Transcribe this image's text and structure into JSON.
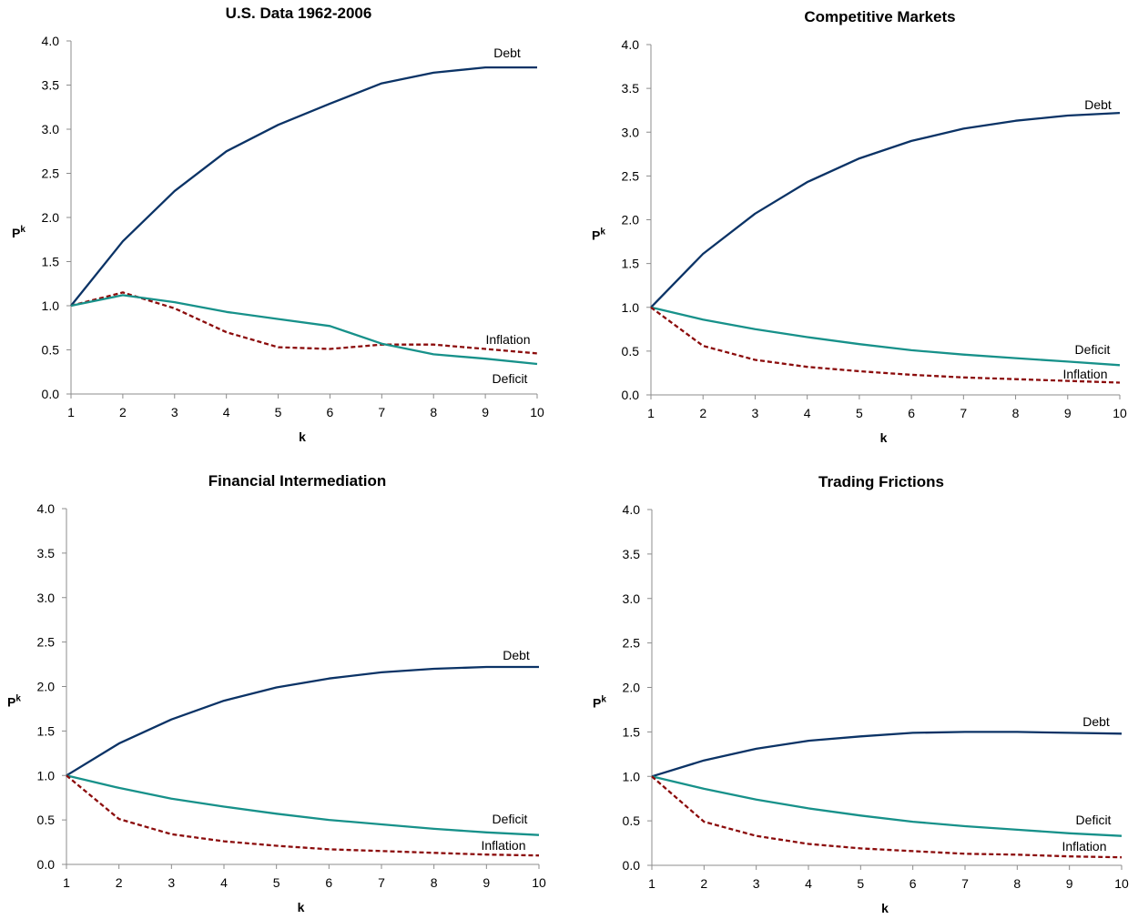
{
  "colors": {
    "debt": "#0b3366",
    "deficit": "#17918a",
    "inflation": "#8b0b0b",
    "axis": "#8c8c8c"
  },
  "chart_data": [
    {
      "type": "line",
      "title": "U.S. Data 1962-2006",
      "xlabel": "k",
      "ylabel": "P",
      "ylabel_sup": "k",
      "x": [
        1,
        2,
        3,
        4,
        5,
        6,
        7,
        8,
        9,
        10
      ],
      "xlim": [
        1,
        10
      ],
      "ylim": [
        0,
        4
      ],
      "yticks": [
        "0.0",
        "0.5",
        "1.0",
        "1.5",
        "2.0",
        "2.5",
        "3.0",
        "3.5",
        "4.0"
      ],
      "grid": false,
      "series": [
        {
          "name": "Debt",
          "key": "debt",
          "style": "solid",
          "values": [
            1.0,
            1.73,
            2.3,
            2.75,
            3.05,
            3.29,
            3.52,
            3.64,
            3.7,
            3.7
          ]
        },
        {
          "name": "Inflation",
          "key": "inflation",
          "style": "dashed",
          "values": [
            1.0,
            1.15,
            0.97,
            0.7,
            0.53,
            0.51,
            0.56,
            0.56,
            0.51,
            0.46
          ]
        },
        {
          "name": "Deficit",
          "key": "deficit",
          "style": "solid",
          "values": [
            1.0,
            1.12,
            1.04,
            0.93,
            0.85,
            0.77,
            0.57,
            0.45,
            0.4,
            0.34
          ]
        }
      ]
    },
    {
      "type": "line",
      "title": "Competitive Markets",
      "xlabel": "k",
      "ylabel": "P",
      "ylabel_sup": "k",
      "x": [
        1,
        2,
        3,
        4,
        5,
        6,
        7,
        8,
        9,
        10
      ],
      "xlim": [
        1,
        10
      ],
      "ylim": [
        0,
        4
      ],
      "yticks": [
        "0.0",
        "0.5",
        "1.0",
        "1.5",
        "2.0",
        "2.5",
        "3.0",
        "3.5",
        "4.0"
      ],
      "grid": false,
      "series": [
        {
          "name": "Debt",
          "key": "debt",
          "style": "solid",
          "values": [
            1.0,
            1.61,
            2.07,
            2.43,
            2.7,
            2.9,
            3.04,
            3.13,
            3.19,
            3.22
          ]
        },
        {
          "name": "Deficit",
          "key": "deficit",
          "style": "solid",
          "values": [
            1.0,
            0.86,
            0.75,
            0.66,
            0.58,
            0.51,
            0.46,
            0.42,
            0.38,
            0.34
          ]
        },
        {
          "name": "Inflation",
          "key": "inflation",
          "style": "dashed",
          "values": [
            1.0,
            0.56,
            0.4,
            0.32,
            0.27,
            0.23,
            0.2,
            0.18,
            0.16,
            0.14
          ]
        }
      ]
    },
    {
      "type": "line",
      "title": "Financial Intermediation",
      "xlabel": "k",
      "ylabel": "P",
      "ylabel_sup": "k",
      "x": [
        1,
        2,
        3,
        4,
        5,
        6,
        7,
        8,
        9,
        10
      ],
      "xlim": [
        1,
        10
      ],
      "ylim": [
        0,
        4
      ],
      "yticks": [
        "0.0",
        "0.5",
        "1.0",
        "1.5",
        "2.0",
        "2.5",
        "3.0",
        "3.5",
        "4.0"
      ],
      "grid": false,
      "series": [
        {
          "name": "Debt",
          "key": "debt",
          "style": "solid",
          "values": [
            1.0,
            1.36,
            1.63,
            1.84,
            1.99,
            2.09,
            2.16,
            2.2,
            2.22,
            2.22
          ]
        },
        {
          "name": "Deficit",
          "key": "deficit",
          "style": "solid",
          "values": [
            1.0,
            0.86,
            0.74,
            0.65,
            0.57,
            0.5,
            0.45,
            0.4,
            0.36,
            0.33
          ]
        },
        {
          "name": "Inflation",
          "key": "inflation",
          "style": "dashed",
          "values": [
            1.0,
            0.51,
            0.34,
            0.26,
            0.21,
            0.17,
            0.15,
            0.13,
            0.11,
            0.1
          ]
        }
      ]
    },
    {
      "type": "line",
      "title": "Trading Frictions",
      "xlabel": "k",
      "ylabel": "P",
      "ylabel_sup": "k",
      "x": [
        1,
        2,
        3,
        4,
        5,
        6,
        7,
        8,
        9,
        10
      ],
      "xlim": [
        1,
        10
      ],
      "ylim": [
        0,
        4
      ],
      "yticks": [
        "0.0",
        "0.5",
        "1.0",
        "1.5",
        "2.0",
        "2.5",
        "3.0",
        "3.5",
        "4.0"
      ],
      "grid": false,
      "series": [
        {
          "name": "Debt",
          "key": "debt",
          "style": "solid",
          "values": [
            1.0,
            1.18,
            1.31,
            1.4,
            1.45,
            1.49,
            1.5,
            1.5,
            1.49,
            1.48
          ]
        },
        {
          "name": "Deficit",
          "key": "deficit",
          "style": "solid",
          "values": [
            1.0,
            0.86,
            0.74,
            0.64,
            0.56,
            0.49,
            0.44,
            0.4,
            0.36,
            0.33
          ]
        },
        {
          "name": "Inflation",
          "key": "inflation",
          "style": "dashed",
          "values": [
            1.0,
            0.49,
            0.33,
            0.24,
            0.19,
            0.16,
            0.13,
            0.12,
            0.1,
            0.09
          ]
        }
      ]
    }
  ]
}
